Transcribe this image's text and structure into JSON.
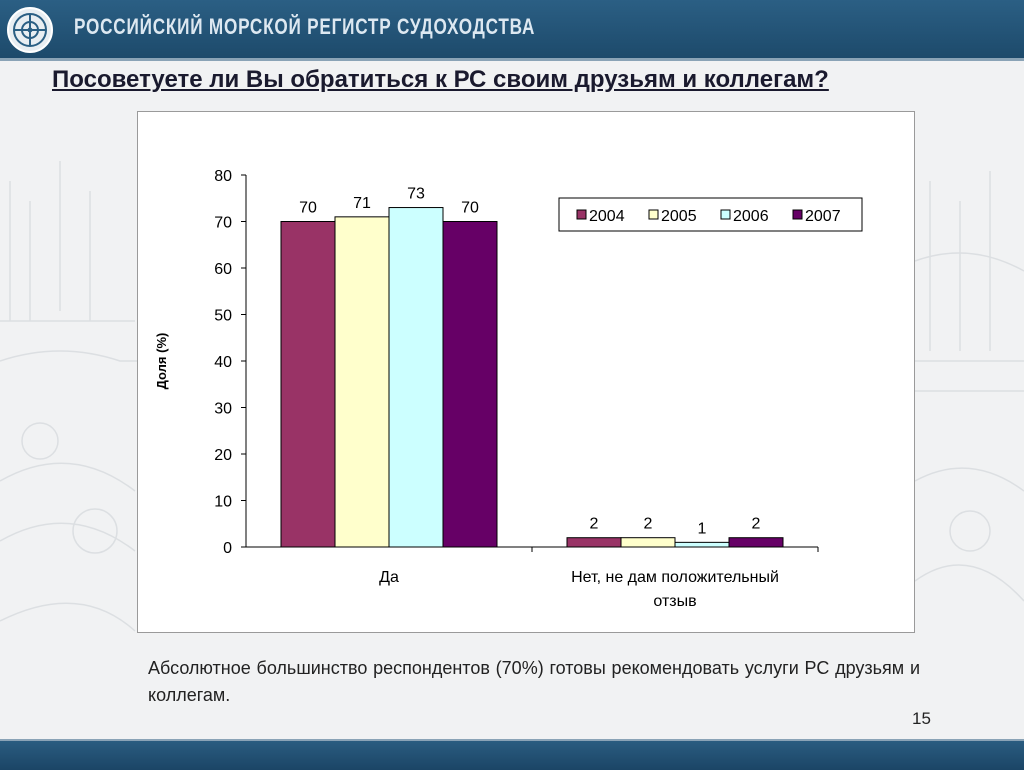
{
  "header": {
    "org_name": "РОССИЙСКИЙ МОРСКОЙ РЕГИСТР СУДОХОДСТВА"
  },
  "slide": {
    "title": "Посоветуете ли Вы обратиться к РС своим друзьям и коллегам?",
    "caption": "Абсолютное большинство респондентов (70%) готовы рекомендовать услуги РС друзьям и коллегам.",
    "page_number": "15"
  },
  "colors": {
    "bar_2004": "#993366",
    "bar_2005": "#ffffcc",
    "bar_2006": "#ccffff",
    "bar_2007": "#660066",
    "header_bar": "#245677"
  },
  "chart_data": {
    "type": "bar",
    "categories": [
      "Да",
      "Нет, не дам положительный отзыв"
    ],
    "category_lines": [
      [
        "Да"
      ],
      [
        "Нет, не дам положительный",
        "отзыв"
      ]
    ],
    "series": [
      {
        "name": "2004",
        "values": [
          70,
          2
        ]
      },
      {
        "name": "2005",
        "values": [
          71,
          2
        ]
      },
      {
        "name": "2006",
        "values": [
          73,
          1
        ]
      },
      {
        "name": "2007",
        "values": [
          70,
          2
        ]
      }
    ],
    "ylabel": "Доля (%)",
    "ylim": [
      0,
      80
    ],
    "yticks": [
      0,
      10,
      20,
      30,
      40,
      50,
      60,
      70,
      80
    ],
    "grid": false,
    "legend": "top-right",
    "data_labels": true
  }
}
